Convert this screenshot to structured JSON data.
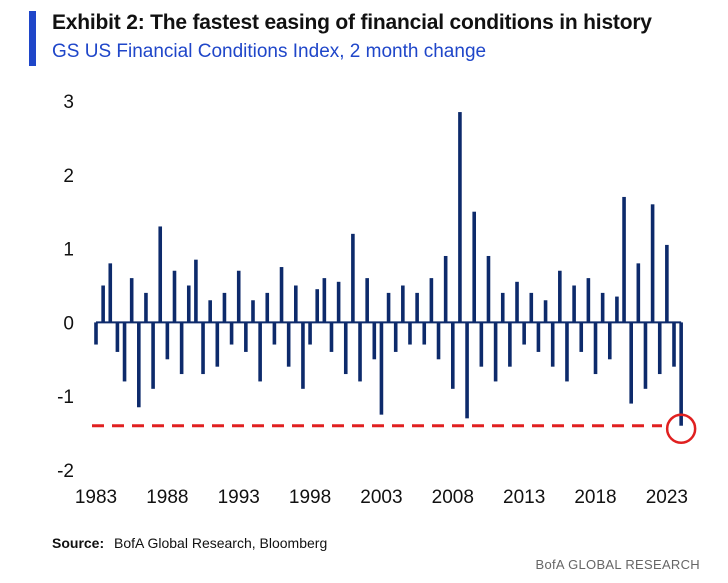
{
  "header": {
    "title": "Exhibit 2: The fastest easing of financial conditions in history",
    "subtitle": "GS US Financial Conditions Index, 2 month change"
  },
  "footer": {
    "source_label": "Source:",
    "source_text": "BofA Global Research, Bloomberg",
    "credit": "BofA GLOBAL RESEARCH"
  },
  "colors": {
    "accent": "#1F46C9",
    "series": "#0D2A6B",
    "highlight": "#E02020"
  },
  "chart_data": {
    "type": "bar",
    "xlim": [
      1983,
      2024.2
    ],
    "ylim": [
      -2,
      3
    ],
    "x_ticks": [
      1983,
      1988,
      1993,
      1998,
      2003,
      2008,
      2013,
      2018,
      2023
    ],
    "x_tick_labels": [
      "1983",
      "1988",
      "1993",
      "1998",
      "2003",
      "2008",
      "2013",
      "2018",
      "2023"
    ],
    "y_ticks": [
      3,
      2,
      1,
      0,
      -1,
      -2
    ],
    "y_tick_labels": [
      "3",
      "2",
      "1",
      "0",
      "-1",
      "-2"
    ],
    "grid": false,
    "series": [
      {
        "x": [
          1983.0,
          1983.5,
          1984.0,
          1984.5,
          1985.0,
          1985.5,
          1986.0,
          1986.5,
          1987.0,
          1987.5,
          1988.0,
          1988.5,
          1989.0,
          1989.5,
          1990.0,
          1990.5,
          1991.0,
          1991.5,
          1992.0,
          1992.5,
          1993.0,
          1993.5,
          1994.0,
          1994.5,
          1995.0,
          1995.5,
          1996.0,
          1996.5,
          1997.0,
          1997.5,
          1998.0,
          1998.5,
          1999.0,
          1999.5,
          2000.0,
          2000.5,
          2001.0,
          2001.5,
          2002.0,
          2002.5,
          2003.0,
          2003.5,
          2004.0,
          2004.5,
          2005.0,
          2005.5,
          2006.0,
          2006.5,
          2007.0,
          2007.5,
          2008.0,
          2008.5,
          2009.0,
          2009.5,
          2010.0,
          2010.5,
          2011.0,
          2011.5,
          2012.0,
          2012.5,
          2013.0,
          2013.5,
          2014.0,
          2014.5,
          2015.0,
          2015.5,
          2016.0,
          2016.5,
          2017.0,
          2017.5,
          2018.0,
          2018.5,
          2019.0,
          2019.5,
          2020.0,
          2020.5,
          2021.0,
          2021.5,
          2022.0,
          2022.5,
          2023.0,
          2023.5,
          2024.0
        ],
        "values": [
          -0.3,
          0.5,
          0.8,
          -0.4,
          -0.8,
          0.6,
          -1.15,
          0.4,
          -0.9,
          1.3,
          -0.5,
          0.7,
          -0.7,
          0.5,
          0.85,
          -0.7,
          0.3,
          -0.6,
          0.4,
          -0.3,
          0.7,
          -0.4,
          0.3,
          -0.8,
          0.4,
          -0.3,
          0.75,
          -0.6,
          0.5,
          -0.9,
          -0.3,
          0.45,
          0.6,
          -0.4,
          0.55,
          -0.7,
          1.2,
          -0.8,
          0.6,
          -0.5,
          -1.25,
          0.4,
          -0.4,
          0.5,
          -0.3,
          0.4,
          -0.3,
          0.6,
          -0.5,
          0.9,
          -0.9,
          2.85,
          -1.3,
          1.5,
          -0.6,
          0.9,
          -0.8,
          0.4,
          -0.6,
          0.55,
          -0.3,
          0.4,
          -0.4,
          0.3,
          -0.6,
          0.7,
          -0.8,
          0.5,
          -0.4,
          0.6,
          -0.7,
          0.4,
          -0.5,
          0.35,
          1.7,
          -1.1,
          0.8,
          -0.9,
          1.6,
          -0.7,
          1.05,
          -0.6,
          -1.4
        ]
      }
    ],
    "annotations": [
      {
        "type": "hline",
        "y": -1.4,
        "style": "dashed",
        "color": "#E02020"
      },
      {
        "type": "circle",
        "x": 2024.0,
        "y": -1.4,
        "color": "#E02020"
      }
    ]
  }
}
